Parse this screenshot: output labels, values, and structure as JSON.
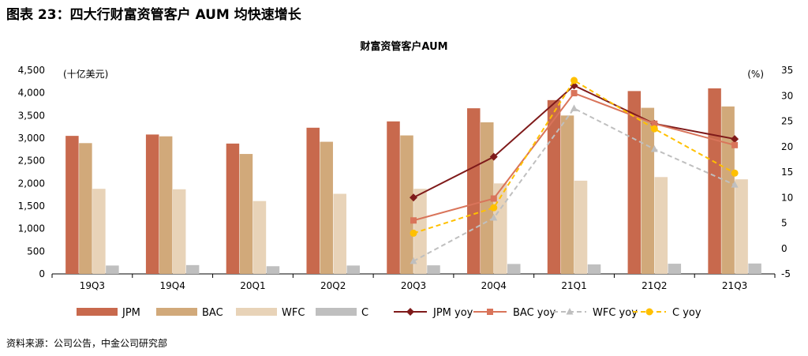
{
  "figure_title": "图表 23：四大行财富资管客户 AUM 均快速增长",
  "source_note": "资料来源：公司公告，中金公司研究部",
  "chart_data": {
    "type": "bar",
    "title": "财富资管客户AUM",
    "categories": [
      "19Q3",
      "19Q4",
      "20Q1",
      "20Q2",
      "20Q3",
      "20Q4",
      "21Q1",
      "21Q2",
      "21Q3"
    ],
    "left_axis": {
      "unit_label": "(十亿美元)",
      "ylim": [
        0,
        4500
      ],
      "ticks": [
        "0",
        "500",
        "1,000",
        "1,500",
        "2,000",
        "2,500",
        "3,000",
        "3,500",
        "4,000",
        "4,500"
      ]
    },
    "right_axis": {
      "unit_label": "(%)",
      "ylim": [
        -5,
        35
      ],
      "ticks": [
        "-5",
        "0",
        "5",
        "10",
        "15",
        "20",
        "25",
        "30",
        "35"
      ]
    },
    "bar_series": [
      {
        "name": "JPM",
        "color": "#C8694D",
        "values": [
          3050,
          3080,
          2880,
          3230,
          3370,
          3660,
          3840,
          4040,
          4100
        ]
      },
      {
        "name": "BAC",
        "color": "#D1A97A",
        "values": [
          2890,
          3040,
          2650,
          2920,
          3060,
          3350,
          3500,
          3670,
          3700
        ]
      },
      {
        "name": "WFC",
        "color": "#E8D3B8",
        "values": [
          1880,
          1870,
          1610,
          1770,
          1880,
          2000,
          2060,
          2140,
          2090
        ]
      },
      {
        "name": "C",
        "color": "#BFBFBF",
        "values": [
          185,
          195,
          170,
          185,
          190,
          220,
          210,
          225,
          230
        ]
      }
    ],
    "line_series": [
      {
        "name": "JPM yoy",
        "color": "#7F1A1A",
        "marker": "diamond",
        "dash": "solid",
        "values": [
          null,
          null,
          null,
          null,
          10.0,
          18.0,
          32.0,
          24.5,
          21.5
        ]
      },
      {
        "name": "BAC yoy",
        "color": "#D9745A",
        "marker": "square",
        "dash": "solid",
        "values": [
          null,
          null,
          null,
          null,
          5.5,
          9.8,
          30.5,
          24.5,
          20.3
        ]
      },
      {
        "name": "WFC yoy",
        "color": "#BFBFBF",
        "marker": "triangle",
        "dash": "dashed",
        "values": [
          null,
          null,
          null,
          null,
          -2.5,
          6.0,
          27.5,
          19.5,
          12.5
        ]
      },
      {
        "name": "C yoy",
        "color": "#FFC000",
        "marker": "circle",
        "dash": "dashed",
        "values": [
          null,
          null,
          null,
          null,
          3.0,
          8.0,
          33.0,
          23.5,
          14.8
        ]
      }
    ],
    "grid": false,
    "legend_position": "bottom"
  }
}
